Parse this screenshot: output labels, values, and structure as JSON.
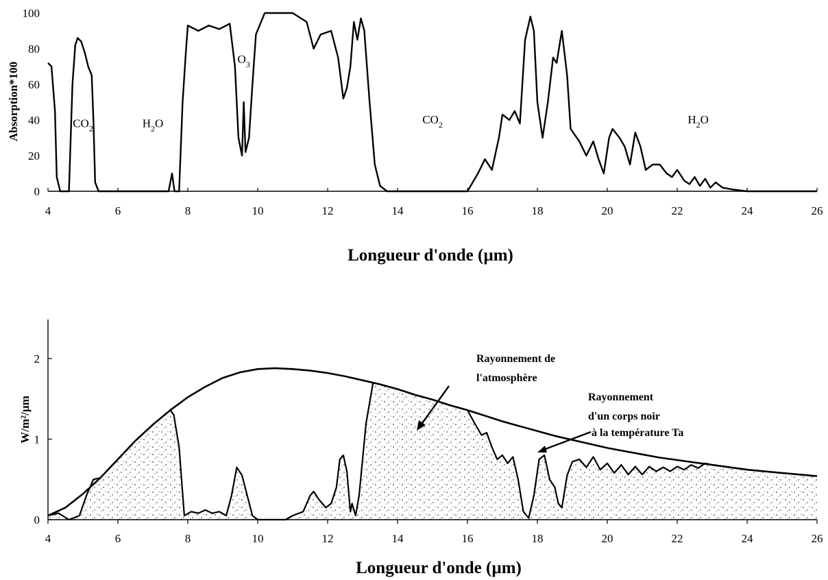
{
  "chart_data": [
    {
      "type": "line",
      "xlabel": "Longueur d'onde (µm)",
      "ylabel": "Absorption*100",
      "xlim": [
        4,
        26
      ],
      "ylim": [
        0,
        100
      ],
      "x_ticks": [
        "4",
        "6",
        "8",
        "10",
        "12",
        "14",
        "16",
        "18",
        "20",
        "22",
        "24",
        "26"
      ],
      "y_ticks": [
        "0",
        "20",
        "40",
        "60",
        "80",
        "100"
      ],
      "grid": false,
      "gas_labels": [
        {
          "base": "CO",
          "sub": "2",
          "x": 5.0,
          "y": 36
        },
        {
          "base": "H",
          "sub": "2",
          "tail": "O",
          "x": 7.0,
          "y": 36
        },
        {
          "base": "O",
          "sub": "3",
          "x": 9.6,
          "y": 72
        },
        {
          "base": "CO",
          "sub": "2",
          "x": 15.0,
          "y": 38
        },
        {
          "base": "H",
          "sub": "2",
          "tail": "O",
          "x": 22.6,
          "y": 38
        }
      ],
      "series": [
        {
          "values": [
            [
              4.0,
              72
            ],
            [
              4.1,
              70
            ],
            [
              4.2,
              45
            ],
            [
              4.25,
              8
            ],
            [
              4.35,
              0
            ],
            [
              4.6,
              0
            ],
            [
              4.7,
              60
            ],
            [
              4.78,
              82
            ],
            [
              4.85,
              86
            ],
            [
              4.95,
              84
            ],
            [
              5.05,
              78
            ],
            [
              5.15,
              70
            ],
            [
              5.25,
              65
            ],
            [
              5.3,
              40
            ],
            [
              5.35,
              5
            ],
            [
              5.45,
              0
            ],
            [
              7.45,
              0
            ],
            [
              7.55,
              10
            ],
            [
              7.62,
              0
            ],
            [
              7.75,
              0
            ],
            [
              7.85,
              50
            ],
            [
              7.95,
              80
            ],
            [
              8.0,
              93
            ],
            [
              8.3,
              90
            ],
            [
              8.6,
              93
            ],
            [
              8.9,
              91
            ],
            [
              9.2,
              94
            ],
            [
              9.35,
              70
            ],
            [
              9.45,
              30
            ],
            [
              9.55,
              20
            ],
            [
              9.6,
              50
            ],
            [
              9.65,
              22
            ],
            [
              9.75,
              30
            ],
            [
              9.85,
              60
            ],
            [
              9.95,
              88
            ],
            [
              10.2,
              100
            ],
            [
              11.0,
              100
            ],
            [
              11.4,
              95
            ],
            [
              11.6,
              80
            ],
            [
              11.8,
              88
            ],
            [
              12.1,
              90
            ],
            [
              12.3,
              75
            ],
            [
              12.45,
              52
            ],
            [
              12.55,
              58
            ],
            [
              12.65,
              70
            ],
            [
              12.75,
              95
            ],
            [
              12.85,
              85
            ],
            [
              12.95,
              97
            ],
            [
              13.05,
              90
            ],
            [
              13.2,
              50
            ],
            [
              13.35,
              15
            ],
            [
              13.5,
              3
            ],
            [
              13.7,
              0
            ],
            [
              16.0,
              0
            ],
            [
              16.3,
              10
            ],
            [
              16.5,
              18
            ],
            [
              16.7,
              12
            ],
            [
              16.9,
              30
            ],
            [
              17.0,
              43
            ],
            [
              17.2,
              40
            ],
            [
              17.35,
              45
            ],
            [
              17.5,
              38
            ],
            [
              17.65,
              85
            ],
            [
              17.8,
              98
            ],
            [
              17.9,
              90
            ],
            [
              18.0,
              50
            ],
            [
              18.15,
              30
            ],
            [
              18.3,
              50
            ],
            [
              18.45,
              75
            ],
            [
              18.55,
              72
            ],
            [
              18.7,
              90
            ],
            [
              18.85,
              65
            ],
            [
              18.95,
              35
            ],
            [
              19.2,
              28
            ],
            [
              19.4,
              20
            ],
            [
              19.6,
              28
            ],
            [
              19.75,
              18
            ],
            [
              19.9,
              10
            ],
            [
              20.05,
              30
            ],
            [
              20.15,
              35
            ],
            [
              20.35,
              30
            ],
            [
              20.5,
              25
            ],
            [
              20.65,
              15
            ],
            [
              20.8,
              33
            ],
            [
              20.95,
              25
            ],
            [
              21.1,
              12
            ],
            [
              21.3,
              15
            ],
            [
              21.5,
              15
            ],
            [
              21.7,
              10
            ],
            [
              21.85,
              8
            ],
            [
              22.0,
              12
            ],
            [
              22.2,
              6
            ],
            [
              22.35,
              4
            ],
            [
              22.5,
              8
            ],
            [
              22.65,
              3
            ],
            [
              22.8,
              7
            ],
            [
              22.95,
              2
            ],
            [
              23.1,
              5
            ],
            [
              23.3,
              2
            ],
            [
              23.6,
              1
            ],
            [
              24.0,
              0
            ],
            [
              26.0,
              0
            ]
          ]
        }
      ]
    },
    {
      "type": "area",
      "xlabel": "Longueur d'onde (µm)",
      "ylabel": "W/m²/µm",
      "xlim": [
        4,
        26
      ],
      "ylim": [
        0,
        2.5
      ],
      "x_ticks": [
        "4",
        "6",
        "8",
        "10",
        "12",
        "14",
        "16",
        "18",
        "20",
        "22",
        "24",
        "26"
      ],
      "y_ticks": [
        "0",
        "1",
        "2"
      ],
      "grid": false,
      "annotations": [
        "Rayonnement de",
        "l'atmosphère",
        "Rayonnement",
        "d'un corps noir",
        "à la température Ta"
      ],
      "series": [
        {
          "name": "Rayonnement d'un corps noir à la température Ta",
          "values": [
            [
              4.0,
              0.05
            ],
            [
              4.5,
              0.15
            ],
            [
              5.0,
              0.32
            ],
            [
              5.5,
              0.52
            ],
            [
              6.0,
              0.75
            ],
            [
              6.5,
              0.98
            ],
            [
              7.0,
              1.18
            ],
            [
              7.5,
              1.36
            ],
            [
              8.0,
              1.52
            ],
            [
              8.5,
              1.65
            ],
            [
              9.0,
              1.76
            ],
            [
              9.5,
              1.83
            ],
            [
              10.0,
              1.87
            ],
            [
              10.5,
              1.88
            ],
            [
              11.0,
              1.87
            ],
            [
              11.5,
              1.85
            ],
            [
              12.0,
              1.82
            ],
            [
              12.5,
              1.78
            ],
            [
              13.0,
              1.73
            ],
            [
              13.5,
              1.68
            ],
            [
              14.0,
              1.62
            ],
            [
              14.5,
              1.55
            ],
            [
              15.0,
              1.49
            ],
            [
              15.5,
              1.42
            ],
            [
              16.0,
              1.36
            ],
            [
              16.5,
              1.29
            ],
            [
              17.0,
              1.22
            ],
            [
              17.5,
              1.16
            ],
            [
              18.0,
              1.1
            ],
            [
              18.5,
              1.04
            ],
            [
              19.0,
              0.99
            ],
            [
              19.5,
              0.94
            ],
            [
              20.0,
              0.89
            ],
            [
              20.5,
              0.85
            ],
            [
              21.0,
              0.81
            ],
            [
              21.5,
              0.77
            ],
            [
              22.0,
              0.74
            ],
            [
              22.5,
              0.71
            ],
            [
              23.0,
              0.68
            ],
            [
              23.5,
              0.65
            ],
            [
              24.0,
              0.62
            ],
            [
              24.5,
              0.6
            ],
            [
              25.0,
              0.58
            ],
            [
              25.5,
              0.56
            ],
            [
              26.0,
              0.54
            ]
          ]
        },
        {
          "name": "Rayonnement de l'atmosphère",
          "values": [
            [
              4.0,
              0.05
            ],
            [
              4.3,
              0.08
            ],
            [
              4.6,
              0.0
            ],
            [
              4.9,
              0.05
            ],
            [
              5.1,
              0.3
            ],
            [
              5.3,
              0.5
            ],
            [
              5.5,
              0.52
            ],
            [
              6.0,
              0.75
            ],
            [
              6.5,
              0.98
            ],
            [
              7.0,
              1.18
            ],
            [
              7.5,
              1.36
            ],
            [
              7.6,
              1.3
            ],
            [
              7.75,
              0.9
            ],
            [
              7.9,
              0.05
            ],
            [
              8.1,
              0.1
            ],
            [
              8.3,
              0.08
            ],
            [
              8.5,
              0.12
            ],
            [
              8.7,
              0.08
            ],
            [
              8.9,
              0.1
            ],
            [
              9.1,
              0.05
            ],
            [
              9.25,
              0.3
            ],
            [
              9.4,
              0.65
            ],
            [
              9.55,
              0.55
            ],
            [
              9.7,
              0.3
            ],
            [
              9.85,
              0.05
            ],
            [
              10.0,
              0.0
            ],
            [
              10.8,
              0.0
            ],
            [
              11.0,
              0.05
            ],
            [
              11.3,
              0.1
            ],
            [
              11.5,
              0.3
            ],
            [
              11.6,
              0.35
            ],
            [
              11.75,
              0.25
            ],
            [
              11.95,
              0.15
            ],
            [
              12.1,
              0.2
            ],
            [
              12.25,
              0.4
            ],
            [
              12.35,
              0.75
            ],
            [
              12.45,
              0.8
            ],
            [
              12.55,
              0.6
            ],
            [
              12.65,
              0.1
            ],
            [
              12.7,
              0.2
            ],
            [
              12.8,
              0.05
            ],
            [
              12.9,
              0.3
            ],
            [
              13.1,
              1.2
            ],
            [
              13.3,
              1.7
            ],
            [
              13.5,
              1.68
            ],
            [
              14.0,
              1.62
            ],
            [
              14.5,
              1.55
            ],
            [
              15.0,
              1.49
            ],
            [
              15.5,
              1.42
            ],
            [
              16.0,
              1.36
            ],
            [
              16.2,
              1.2
            ],
            [
              16.4,
              1.05
            ],
            [
              16.55,
              1.08
            ],
            [
              16.7,
              0.9
            ],
            [
              16.85,
              0.75
            ],
            [
              17.0,
              0.8
            ],
            [
              17.15,
              0.7
            ],
            [
              17.3,
              0.78
            ],
            [
              17.45,
              0.5
            ],
            [
              17.6,
              0.1
            ],
            [
              17.75,
              0.02
            ],
            [
              17.9,
              0.3
            ],
            [
              18.05,
              0.75
            ],
            [
              18.2,
              0.8
            ],
            [
              18.35,
              0.5
            ],
            [
              18.5,
              0.4
            ],
            [
              18.6,
              0.2
            ],
            [
              18.7,
              0.15
            ],
            [
              18.85,
              0.55
            ],
            [
              19.0,
              0.72
            ],
            [
              19.2,
              0.75
            ],
            [
              19.4,
              0.65
            ],
            [
              19.6,
              0.78
            ],
            [
              19.8,
              0.62
            ],
            [
              20.0,
              0.7
            ],
            [
              20.2,
              0.58
            ],
            [
              20.4,
              0.68
            ],
            [
              20.6,
              0.56
            ],
            [
              20.8,
              0.66
            ],
            [
              21.0,
              0.56
            ],
            [
              21.2,
              0.66
            ],
            [
              21.4,
              0.6
            ],
            [
              21.6,
              0.65
            ],
            [
              21.8,
              0.6
            ],
            [
              22.0,
              0.66
            ],
            [
              22.2,
              0.62
            ],
            [
              22.4,
              0.68
            ],
            [
              22.6,
              0.64
            ],
            [
              22.8,
              0.7
            ],
            [
              23.0,
              0.68
            ],
            [
              23.5,
              0.65
            ],
            [
              24.0,
              0.62
            ],
            [
              24.5,
              0.6
            ],
            [
              25.0,
              0.58
            ],
            [
              25.5,
              0.56
            ],
            [
              26.0,
              0.54
            ]
          ]
        }
      ]
    }
  ]
}
